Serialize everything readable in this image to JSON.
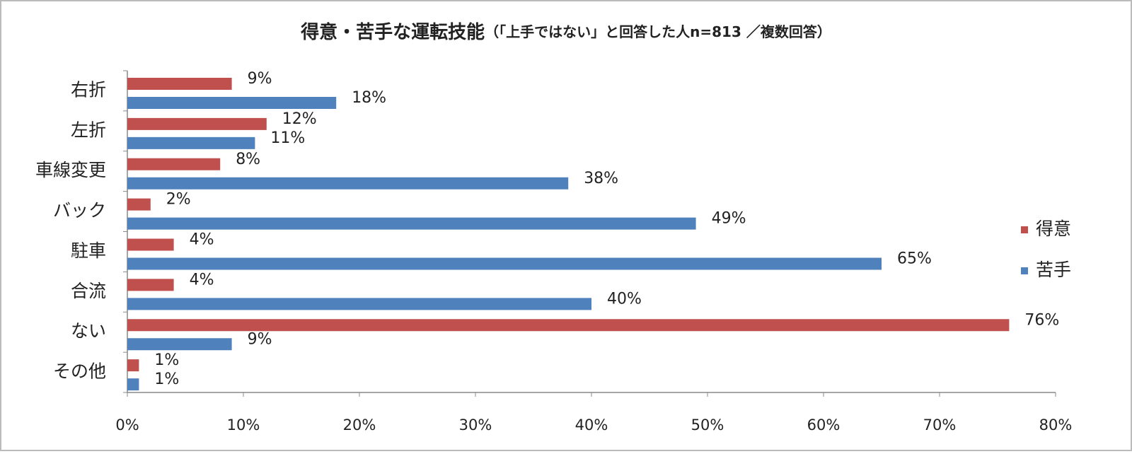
{
  "chart_data": {
    "type": "bar",
    "orientation": "horizontal",
    "title": "得意・苦手な運転技能",
    "subtitle": "（「上手ではない」と回答した人n=813 ／複数回答）",
    "categories": [
      "右折",
      "左折",
      "車線変更",
      "バック",
      "駐車",
      "合流",
      "ない",
      "その他"
    ],
    "series": [
      {
        "name": "得意",
        "color": "#c0504d",
        "values": [
          9,
          12,
          8,
          2,
          4,
          4,
          76,
          1
        ],
        "value_labels": [
          "9%",
          "12%",
          "8%",
          "2%",
          "4%",
          "4%",
          "76%",
          "1%"
        ]
      },
      {
        "name": "苦手",
        "color": "#4f81bd",
        "values": [
          18,
          11,
          38,
          49,
          65,
          40,
          9,
          1
        ],
        "value_labels": [
          "18%",
          "11%",
          "38%",
          "49%",
          "65%",
          "40%",
          "9%",
          "1%"
        ]
      }
    ],
    "xlim": [
      0,
      80
    ],
    "xticks": [
      {
        "value": 0,
        "label": "0%"
      },
      {
        "value": 10,
        "label": "10%"
      },
      {
        "value": 20,
        "label": "20%"
      },
      {
        "value": 30,
        "label": "30%"
      },
      {
        "value": 40,
        "label": "40%"
      },
      {
        "value": 50,
        "label": "50%"
      },
      {
        "value": 60,
        "label": "60%"
      },
      {
        "value": 70,
        "label": "70%"
      },
      {
        "value": 80,
        "label": "80%"
      }
    ],
    "grid": false,
    "legend": "right"
  }
}
